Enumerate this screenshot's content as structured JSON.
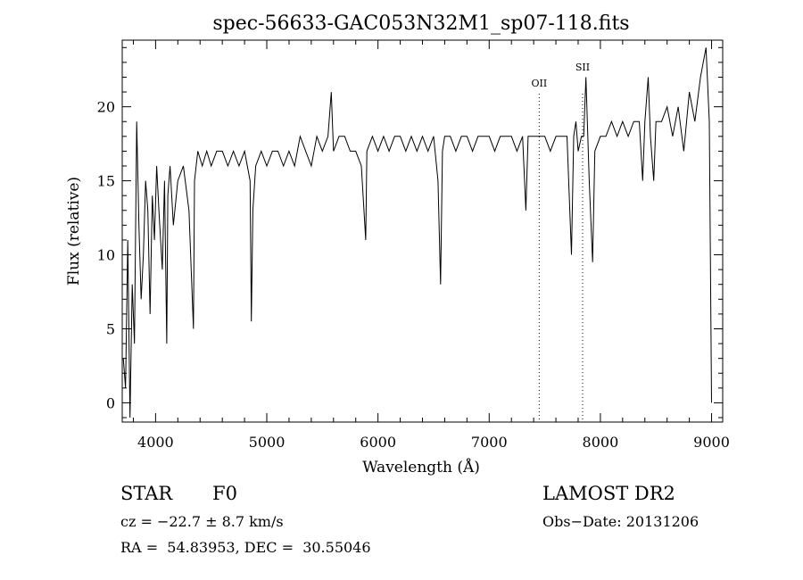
{
  "chart_data": {
    "type": "line",
    "title": "spec-56633-GAC053N32M1_sp07-118.fits",
    "xlabel": "Wavelength (Å)",
    "ylabel": "Flux (relative)",
    "xlim": [
      3700,
      9100
    ],
    "ylim": [
      -1.3,
      24.5
    ],
    "xticks": [
      4000,
      5000,
      6000,
      7000,
      8000,
      9000
    ],
    "yticks": [
      0,
      5,
      10,
      15,
      20
    ],
    "line_markers": [
      {
        "label": "OII",
        "x": 7450
      },
      {
        "label": "SII",
        "x": 7840
      }
    ],
    "series": [
      {
        "x": [
          3710,
          3730,
          3750,
          3770,
          3790,
          3810,
          3830,
          3850,
          3870,
          3890,
          3910,
          3930,
          3950,
          3970,
          3990,
          4010,
          4030,
          4060,
          4080,
          4100,
          4110,
          4130,
          4160,
          4200,
          4250,
          4300,
          4340,
          4350,
          4380,
          4420,
          4460,
          4500,
          4550,
          4600,
          4650,
          4700,
          4750,
          4800,
          4850,
          4861,
          4875,
          4900,
          4950,
          5000,
          5050,
          5100,
          5150,
          5200,
          5250,
          5300,
          5350,
          5400,
          5450,
          5500,
          5550,
          5580,
          5600,
          5650,
          5700,
          5750,
          5800,
          5850,
          5890,
          5900,
          5950,
          6000,
          6050,
          6100,
          6150,
          6200,
          6250,
          6300,
          6350,
          6400,
          6450,
          6500,
          6540,
          6563,
          6580,
          6600,
          6650,
          6700,
          6750,
          6800,
          6850,
          6900,
          6950,
          7000,
          7050,
          7100,
          7150,
          7200,
          7250,
          7300,
          7330,
          7350,
          7400,
          7450,
          7500,
          7550,
          7600,
          7650,
          7700,
          7740,
          7760,
          7780,
          7800,
          7830,
          7850,
          7870,
          7900,
          7930,
          7950,
          8000,
          8050,
          8100,
          8150,
          8200,
          8250,
          8300,
          8350,
          8380,
          8400,
          8430,
          8450,
          8480,
          8500,
          8550,
          8600,
          8650,
          8700,
          8750,
          8800,
          8850,
          8900,
          8950,
          8980,
          9000
        ],
        "values": [
          3,
          1,
          11,
          -1,
          8,
          4,
          19,
          12,
          7,
          10,
          15,
          13,
          6,
          14,
          11,
          16,
          13,
          9,
          15,
          4,
          14,
          16,
          12,
          15,
          16,
          13,
          5,
          15,
          17,
          16,
          17,
          16,
          17,
          17,
          16,
          17,
          16,
          17,
          15,
          5.5,
          13,
          16,
          17,
          16,
          17,
          17,
          16,
          17,
          16,
          18,
          17,
          16,
          18,
          17,
          18,
          21,
          17,
          18,
          18,
          17,
          17,
          16,
          11,
          17,
          18,
          17,
          18,
          17,
          18,
          18,
          17,
          18,
          17,
          18,
          17,
          18,
          15,
          8,
          17,
          18,
          18,
          17,
          18,
          18,
          17,
          18,
          18,
          18,
          17,
          18,
          18,
          18,
          17,
          18,
          13,
          18,
          18,
          18,
          18,
          17,
          18,
          18,
          18,
          10,
          18,
          19,
          17,
          18,
          18,
          22,
          15,
          9.5,
          17,
          18,
          18,
          19,
          18,
          19,
          18,
          19,
          19,
          15,
          19,
          22,
          18,
          15,
          19,
          19,
          20,
          18,
          20,
          17,
          21,
          19,
          22,
          24,
          19,
          0
        ]
      }
    ]
  },
  "info": {
    "object_class": "STAR",
    "subclass": "F0",
    "cz": "cz = −22.7 ± 8.7 km/s",
    "coords": "RA =  54.83953, DEC =  30.55046",
    "survey": "LAMOST DR2",
    "obs_date": "Obs−Date: 20131206"
  }
}
